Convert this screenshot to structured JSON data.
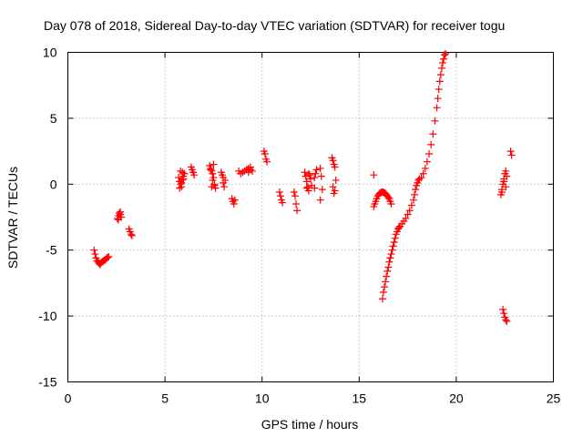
{
  "chart_data": {
    "type": "scatter",
    "title": "Day 078 of 2018, Sidereal Day-to-day VTEC variation (SDTVAR) for receiver togu",
    "xlabel": "GPS time / hours",
    "ylabel": "SDTVAR / TECUs",
    "xlim": [
      0,
      25
    ],
    "ylim": [
      -15,
      10
    ],
    "xticks": [
      "0",
      "5",
      "10",
      "15",
      "20",
      "25"
    ],
    "yticks": [
      "-15",
      "-10",
      "-5",
      "0",
      "5",
      "10"
    ],
    "grid": true,
    "marker": "plus",
    "series": [
      {
        "name": "SDTVAR",
        "color": "#ff0000",
        "x": [
          1.35,
          1.4,
          1.45,
          1.5,
          1.55,
          1.6,
          1.65,
          1.7,
          1.75,
          1.8,
          1.85,
          1.9,
          1.95,
          2.0,
          2.05,
          2.1,
          2.55,
          2.6,
          2.65,
          2.7,
          2.75,
          2.6,
          2.7,
          3.15,
          3.2,
          3.25,
          3.3,
          5.7,
          5.75,
          5.8,
          5.85,
          5.9,
          5.95,
          6.0,
          5.8,
          5.9,
          5.75,
          5.85,
          5.95,
          6.35,
          6.4,
          6.45,
          6.5,
          7.3,
          7.35,
          7.4,
          7.45,
          7.5,
          7.55,
          7.6,
          7.4,
          7.5,
          7.35,
          7.45,
          7.55,
          7.9,
          7.95,
          8.0,
          8.05,
          8.1,
          8.0,
          8.45,
          8.5,
          8.55,
          8.6,
          8.8,
          8.9,
          9.0,
          9.1,
          9.2,
          9.3,
          9.4,
          9.5,
          9.3,
          9.4,
          10.1,
          10.15,
          10.2,
          10.25,
          10.9,
          10.95,
          11.0,
          11.05,
          11.65,
          11.7,
          11.75,
          11.8,
          12.2,
          12.25,
          12.3,
          12.35,
          12.4,
          12.45,
          12.5,
          12.55,
          12.3,
          12.4,
          12.7,
          12.75,
          12.8,
          12.7,
          13.0,
          13.05,
          13.1,
          13.0,
          13.6,
          13.65,
          13.7,
          13.75,
          13.8,
          13.65,
          13.7,
          13.75,
          15.75,
          15.8,
          15.85,
          15.9,
          15.95,
          16.0,
          16.05,
          16.1,
          16.15,
          16.2,
          16.25,
          16.3,
          16.35,
          16.4,
          16.45,
          16.5,
          16.55,
          16.6,
          16.65,
          15.75,
          16.2,
          16.25,
          16.3,
          16.35,
          16.4,
          16.45,
          16.5,
          16.55,
          16.6,
          16.65,
          16.7,
          16.75,
          16.8,
          16.85,
          16.9,
          16.95,
          17.0,
          17.05,
          17.1,
          17.2,
          17.3,
          17.4,
          17.5,
          17.6,
          17.7,
          17.8,
          17.85,
          17.9,
          17.95,
          18.0,
          18.05,
          18.1,
          18.2,
          18.3,
          18.4,
          18.5,
          18.6,
          18.7,
          18.8,
          18.9,
          19.0,
          19.05,
          19.1,
          19.15,
          19.2,
          19.25,
          19.3,
          19.35,
          19.4,
          19.45,
          22.3,
          22.35,
          22.4,
          22.45,
          22.5,
          22.55,
          22.6,
          22.35,
          22.45,
          22.55,
          22.4,
          22.45,
          22.5,
          22.55,
          22.6,
          22.8,
          22.85
        ],
        "y": [
          -5.0,
          -5.3,
          -5.6,
          -5.8,
          -5.9,
          -6.0,
          -6.1,
          -6.0,
          -5.9,
          -5.85,
          -5.8,
          -5.75,
          -5.7,
          -5.6,
          -5.55,
          -5.5,
          -2.6,
          -2.4,
          -2.2,
          -2.3,
          -2.5,
          -2.7,
          -2.1,
          -3.4,
          -3.6,
          -3.8,
          -3.9,
          0.5,
          0.2,
          0.0,
          -0.2,
          0.3,
          0.6,
          0.8,
          1.0,
          0.9,
          -0.3,
          0.1,
          0.4,
          1.3,
          1.1,
          0.9,
          0.7,
          1.4,
          1.2,
          1.0,
          0.8,
          0.5,
          -0.1,
          -0.3,
          -0.2,
          1.5,
          1.1,
          0.3,
          0.0,
          0.9,
          0.7,
          0.5,
          -0.2,
          0.3,
          0.1,
          -1.1,
          -1.3,
          -1.5,
          -1.2,
          1.0,
          0.8,
          0.9,
          1.0,
          1.1,
          1.2,
          1.3,
          1.0,
          0.9,
          1.1,
          2.5,
          2.3,
          1.9,
          1.7,
          -0.6,
          -0.9,
          -1.2,
          -1.4,
          -0.6,
          -0.9,
          -1.5,
          -2.0,
          0.9,
          0.6,
          0.2,
          -0.2,
          -0.5,
          0.7,
          0.4,
          -0.1,
          -0.3,
          0.8,
          0.5,
          0.8,
          1.1,
          -0.3,
          1.2,
          0.6,
          -0.4,
          -1.2,
          2.0,
          1.8,
          1.5,
          1.3,
          0.3,
          -0.2,
          -0.7,
          -0.5,
          -1.7,
          -1.5,
          -1.3,
          -1.1,
          -0.9,
          -0.8,
          -0.7,
          -0.65,
          -0.6,
          -0.6,
          -0.62,
          -0.65,
          -0.7,
          -0.8,
          -0.9,
          -1.0,
          -1.1,
          -1.3,
          -1.5,
          0.7,
          -8.7,
          -8.2,
          -7.8,
          -7.4,
          -7.0,
          -6.6,
          -6.3,
          -5.9,
          -5.6,
          -5.3,
          -5.0,
          -4.7,
          -4.4,
          -4.1,
          -3.8,
          -3.6,
          -3.4,
          -3.3,
          -3.2,
          -3.0,
          -2.8,
          -2.6,
          -2.3,
          -2.0,
          -1.6,
          -1.2,
          -0.8,
          -0.4,
          -0.1,
          0.1,
          0.3,
          0.4,
          0.5,
          0.8,
          1.2,
          1.7,
          2.3,
          3.0,
          3.8,
          4.8,
          5.8,
          6.5,
          7.2,
          7.8,
          8.3,
          8.8,
          9.2,
          9.5,
          9.8,
          9.9,
          -0.8,
          -0.4,
          0.0,
          0.4,
          0.8,
          1.0,
          0.6,
          -0.6,
          0.2,
          -0.2,
          -9.5,
          -9.8,
          -10.1,
          -10.3,
          -10.4,
          2.5,
          2.2
        ]
      }
    ]
  }
}
